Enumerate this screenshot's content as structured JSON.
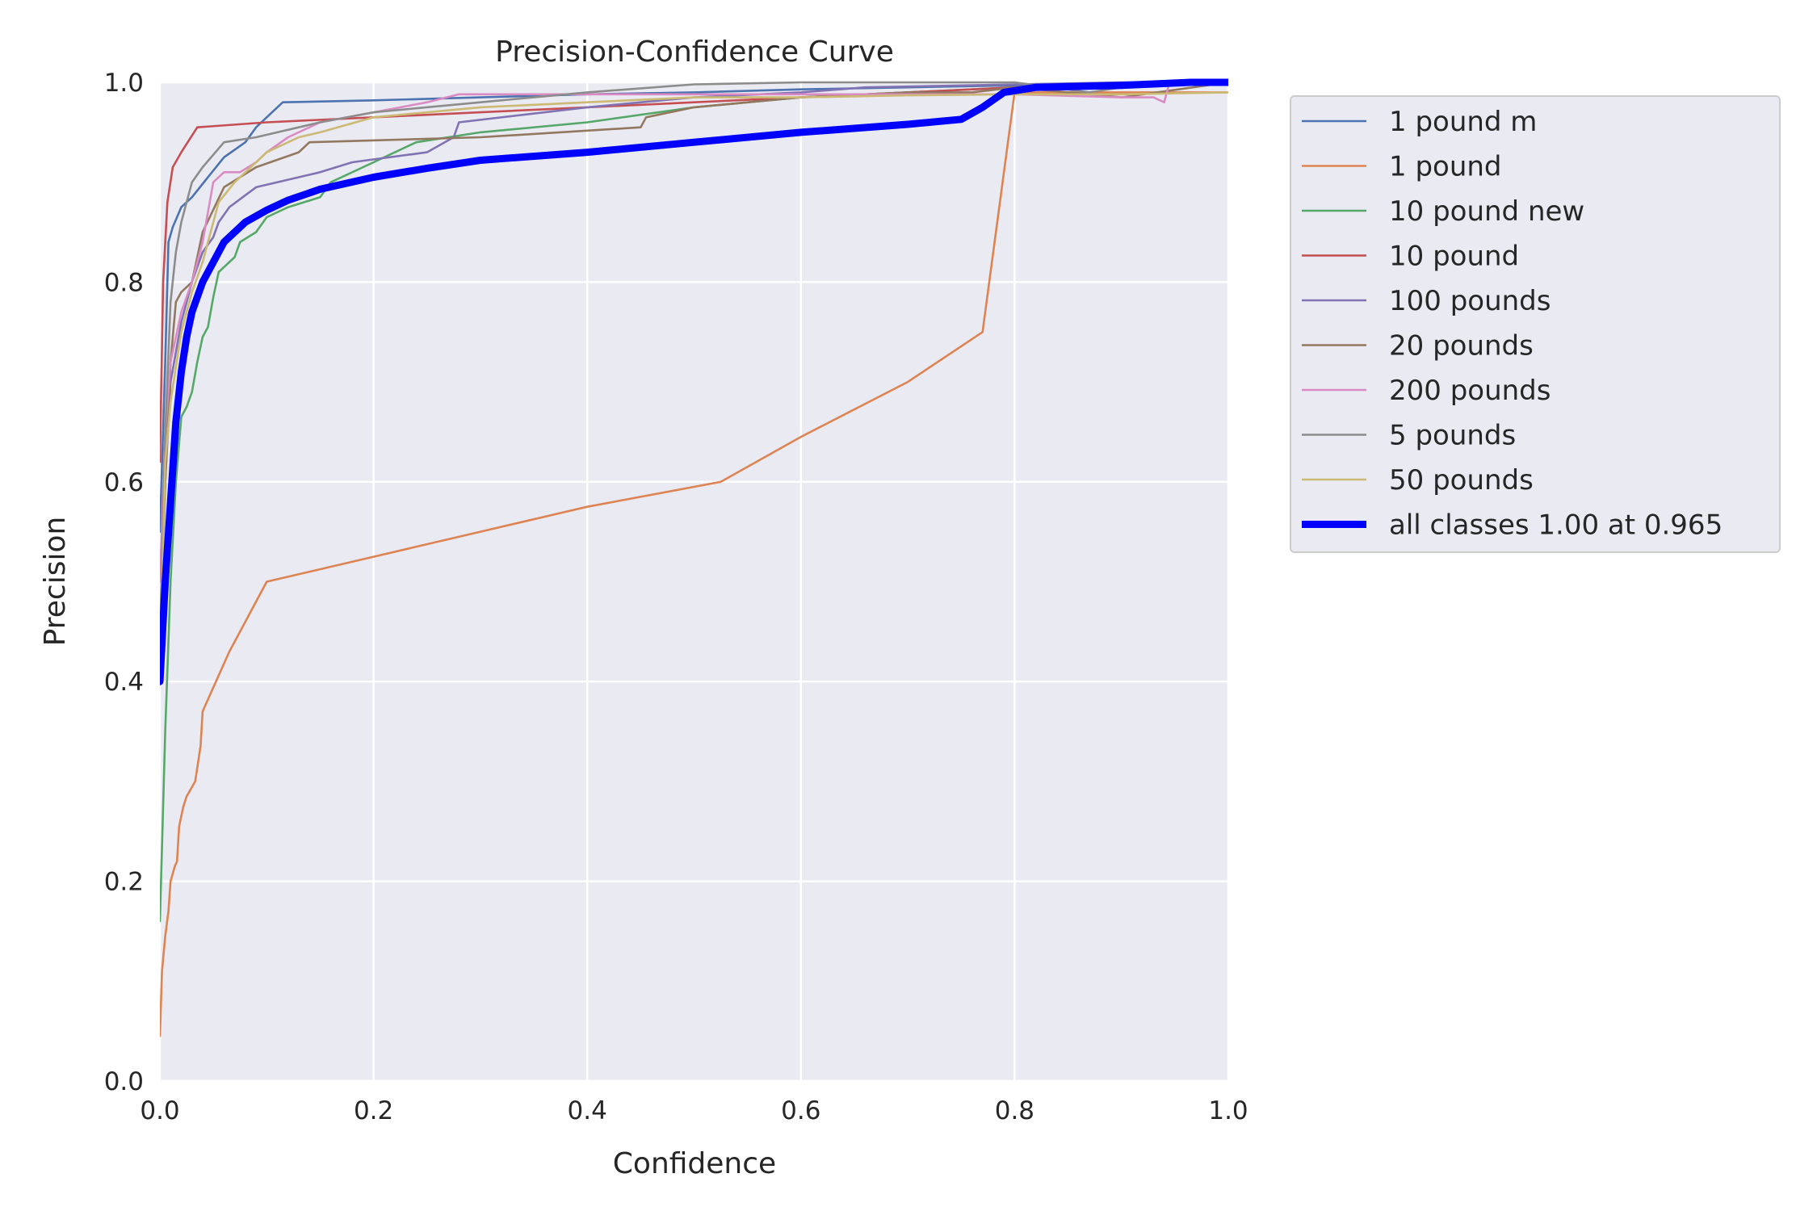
{
  "chart_data": {
    "type": "line",
    "title": "Precision-Confidence Curve",
    "xlabel": "Confidence",
    "ylabel": "Precision",
    "xlim": [
      0,
      1
    ],
    "ylim": [
      0,
      1
    ],
    "grid": true,
    "legend_position": "outside-right-top",
    "x_ticks": [
      "0.0",
      "0.2",
      "0.4",
      "0.6",
      "0.8",
      "1.0"
    ],
    "y_ticks": [
      "0.0",
      "0.2",
      "0.4",
      "0.6",
      "0.8",
      "1.0"
    ],
    "series": [
      {
        "name": "1 pound m",
        "color": "#4c72b0",
        "x": [
          0.0,
          0.005,
          0.008,
          0.012,
          0.02,
          0.03,
          0.045,
          0.06,
          0.08,
          0.09,
          0.115,
          0.2,
          0.3,
          0.4,
          0.5,
          0.6,
          0.7,
          0.8,
          0.9,
          1.0
        ],
        "y": [
          0.55,
          0.72,
          0.84,
          0.855,
          0.875,
          0.885,
          0.905,
          0.925,
          0.94,
          0.955,
          0.98,
          0.982,
          0.985,
          0.988,
          0.99,
          0.993,
          0.995,
          0.997,
          0.999,
          1.0
        ]
      },
      {
        "name": "1 pound",
        "color": "#dd8452",
        "x": [
          0.0,
          0.002,
          0.005,
          0.008,
          0.01,
          0.014,
          0.016,
          0.018,
          0.022,
          0.025,
          0.033,
          0.038,
          0.04,
          0.042,
          0.065,
          0.1,
          0.2,
          0.3,
          0.4,
          0.525,
          0.6,
          0.7,
          0.77,
          0.8,
          0.85,
          0.9,
          1.0
        ],
        "y": [
          0.045,
          0.11,
          0.145,
          0.17,
          0.2,
          0.215,
          0.22,
          0.255,
          0.275,
          0.285,
          0.3,
          0.335,
          0.37,
          0.375,
          0.43,
          0.5,
          0.525,
          0.55,
          0.575,
          0.6,
          0.645,
          0.7,
          0.75,
          0.99,
          0.99,
          0.99,
          0.99
        ]
      },
      {
        "name": "10 pound new",
        "color": "#55a868",
        "x": [
          0.0,
          0.005,
          0.01,
          0.015,
          0.02,
          0.025,
          0.03,
          0.035,
          0.04,
          0.045,
          0.05,
          0.055,
          0.06,
          0.07,
          0.075,
          0.09,
          0.1,
          0.12,
          0.15,
          0.16,
          0.2,
          0.24,
          0.3,
          0.4,
          0.5,
          0.6,
          0.7,
          0.8,
          0.9,
          1.0
        ],
        "y": [
          0.16,
          0.35,
          0.5,
          0.6,
          0.665,
          0.675,
          0.69,
          0.72,
          0.745,
          0.755,
          0.785,
          0.81,
          0.815,
          0.825,
          0.84,
          0.85,
          0.865,
          0.875,
          0.885,
          0.9,
          0.92,
          0.94,
          0.95,
          0.96,
          0.975,
          0.985,
          0.99,
          0.995,
          0.998,
          1.0
        ]
      },
      {
        "name": "10 pound",
        "color": "#c44e52",
        "x": [
          0.0,
          0.003,
          0.007,
          0.012,
          0.02,
          0.035,
          0.1,
          0.2,
          0.3,
          0.4,
          0.5,
          0.6,
          0.7,
          0.8,
          0.9,
          1.0
        ],
        "y": [
          0.62,
          0.8,
          0.88,
          0.915,
          0.93,
          0.955,
          0.96,
          0.965,
          0.97,
          0.975,
          0.98,
          0.985,
          0.99,
          0.995,
          0.998,
          1.0
        ]
      },
      {
        "name": "100 pounds",
        "color": "#8172b3",
        "x": [
          0.0,
          0.005,
          0.01,
          0.02,
          0.03,
          0.04,
          0.05,
          0.055,
          0.065,
          0.09,
          0.15,
          0.18,
          0.25,
          0.275,
          0.28,
          0.4,
          0.5,
          0.6,
          0.66,
          0.8,
          0.9,
          1.0
        ],
        "y": [
          0.42,
          0.6,
          0.7,
          0.76,
          0.8,
          0.83,
          0.845,
          0.86,
          0.875,
          0.895,
          0.91,
          0.92,
          0.93,
          0.945,
          0.96,
          0.975,
          0.985,
          0.99,
          0.995,
          0.998,
          1.0,
          1.0
        ]
      },
      {
        "name": "20 pounds",
        "color": "#937860",
        "x": [
          0.0,
          0.005,
          0.01,
          0.015,
          0.02,
          0.03,
          0.04,
          0.06,
          0.09,
          0.13,
          0.14,
          0.3,
          0.45,
          0.455,
          0.5,
          0.6,
          0.7,
          0.76,
          0.8,
          0.9,
          1.0
        ],
        "y": [
          0.45,
          0.6,
          0.72,
          0.78,
          0.79,
          0.8,
          0.85,
          0.895,
          0.915,
          0.93,
          0.94,
          0.945,
          0.955,
          0.965,
          0.975,
          0.985,
          0.99,
          0.99,
          0.995,
          0.985,
          1.0
        ]
      },
      {
        "name": "200 pounds",
        "color": "#da8bc3",
        "x": [
          0.0,
          0.005,
          0.01,
          0.02,
          0.03,
          0.04,
          0.05,
          0.06,
          0.075,
          0.09,
          0.1,
          0.12,
          0.15,
          0.2,
          0.25,
          0.28,
          0.4,
          0.5,
          0.6,
          0.7,
          0.8,
          0.9,
          0.93,
          0.94,
          0.945,
          1.0
        ],
        "y": [
          0.5,
          0.65,
          0.72,
          0.77,
          0.8,
          0.84,
          0.9,
          0.91,
          0.91,
          0.92,
          0.93,
          0.945,
          0.96,
          0.97,
          0.98,
          0.988,
          0.988,
          0.988,
          0.988,
          0.988,
          0.988,
          0.985,
          0.985,
          0.98,
          1.0,
          1.0
        ]
      },
      {
        "name": "5 pounds",
        "color": "#8c8c8c",
        "x": [
          0.0,
          0.005,
          0.01,
          0.015,
          0.02,
          0.03,
          0.04,
          0.06,
          0.09,
          0.15,
          0.2,
          0.3,
          0.4,
          0.5,
          0.6,
          0.8,
          0.87,
          0.9,
          1.0
        ],
        "y": [
          0.44,
          0.65,
          0.78,
          0.83,
          0.86,
          0.9,
          0.915,
          0.94,
          0.945,
          0.96,
          0.97,
          0.98,
          0.99,
          0.998,
          1.0,
          1.0,
          0.99,
          0.995,
          1.0
        ]
      },
      {
        "name": "50 pounds",
        "color": "#ccb974",
        "x": [
          0.0,
          0.005,
          0.01,
          0.02,
          0.03,
          0.04,
          0.055,
          0.07,
          0.09,
          0.1,
          0.13,
          0.15,
          0.2,
          0.3,
          0.4,
          0.5,
          0.6,
          0.7,
          0.8,
          0.9,
          1.0
        ],
        "y": [
          0.4,
          0.62,
          0.68,
          0.75,
          0.79,
          0.82,
          0.88,
          0.9,
          0.92,
          0.93,
          0.945,
          0.95,
          0.965,
          0.975,
          0.98,
          0.985,
          0.985,
          0.987,
          0.988,
          0.988,
          0.99
        ]
      },
      {
        "name": "all classes 1.00 at 0.965",
        "color": "#0000ff",
        "bold": true,
        "x": [
          0.0,
          0.005,
          0.01,
          0.015,
          0.02,
          0.025,
          0.03,
          0.04,
          0.05,
          0.06,
          0.08,
          0.1,
          0.12,
          0.15,
          0.2,
          0.25,
          0.3,
          0.4,
          0.5,
          0.6,
          0.7,
          0.75,
          0.77,
          0.79,
          0.82,
          0.9,
          0.965,
          1.0
        ],
        "y": [
          0.4,
          0.5,
          0.58,
          0.66,
          0.71,
          0.745,
          0.77,
          0.8,
          0.82,
          0.84,
          0.86,
          0.872,
          0.882,
          0.893,
          0.905,
          0.914,
          0.922,
          0.93,
          0.94,
          0.95,
          0.958,
          0.963,
          0.975,
          0.99,
          0.995,
          0.997,
          1.0,
          1.0
        ]
      }
    ]
  }
}
